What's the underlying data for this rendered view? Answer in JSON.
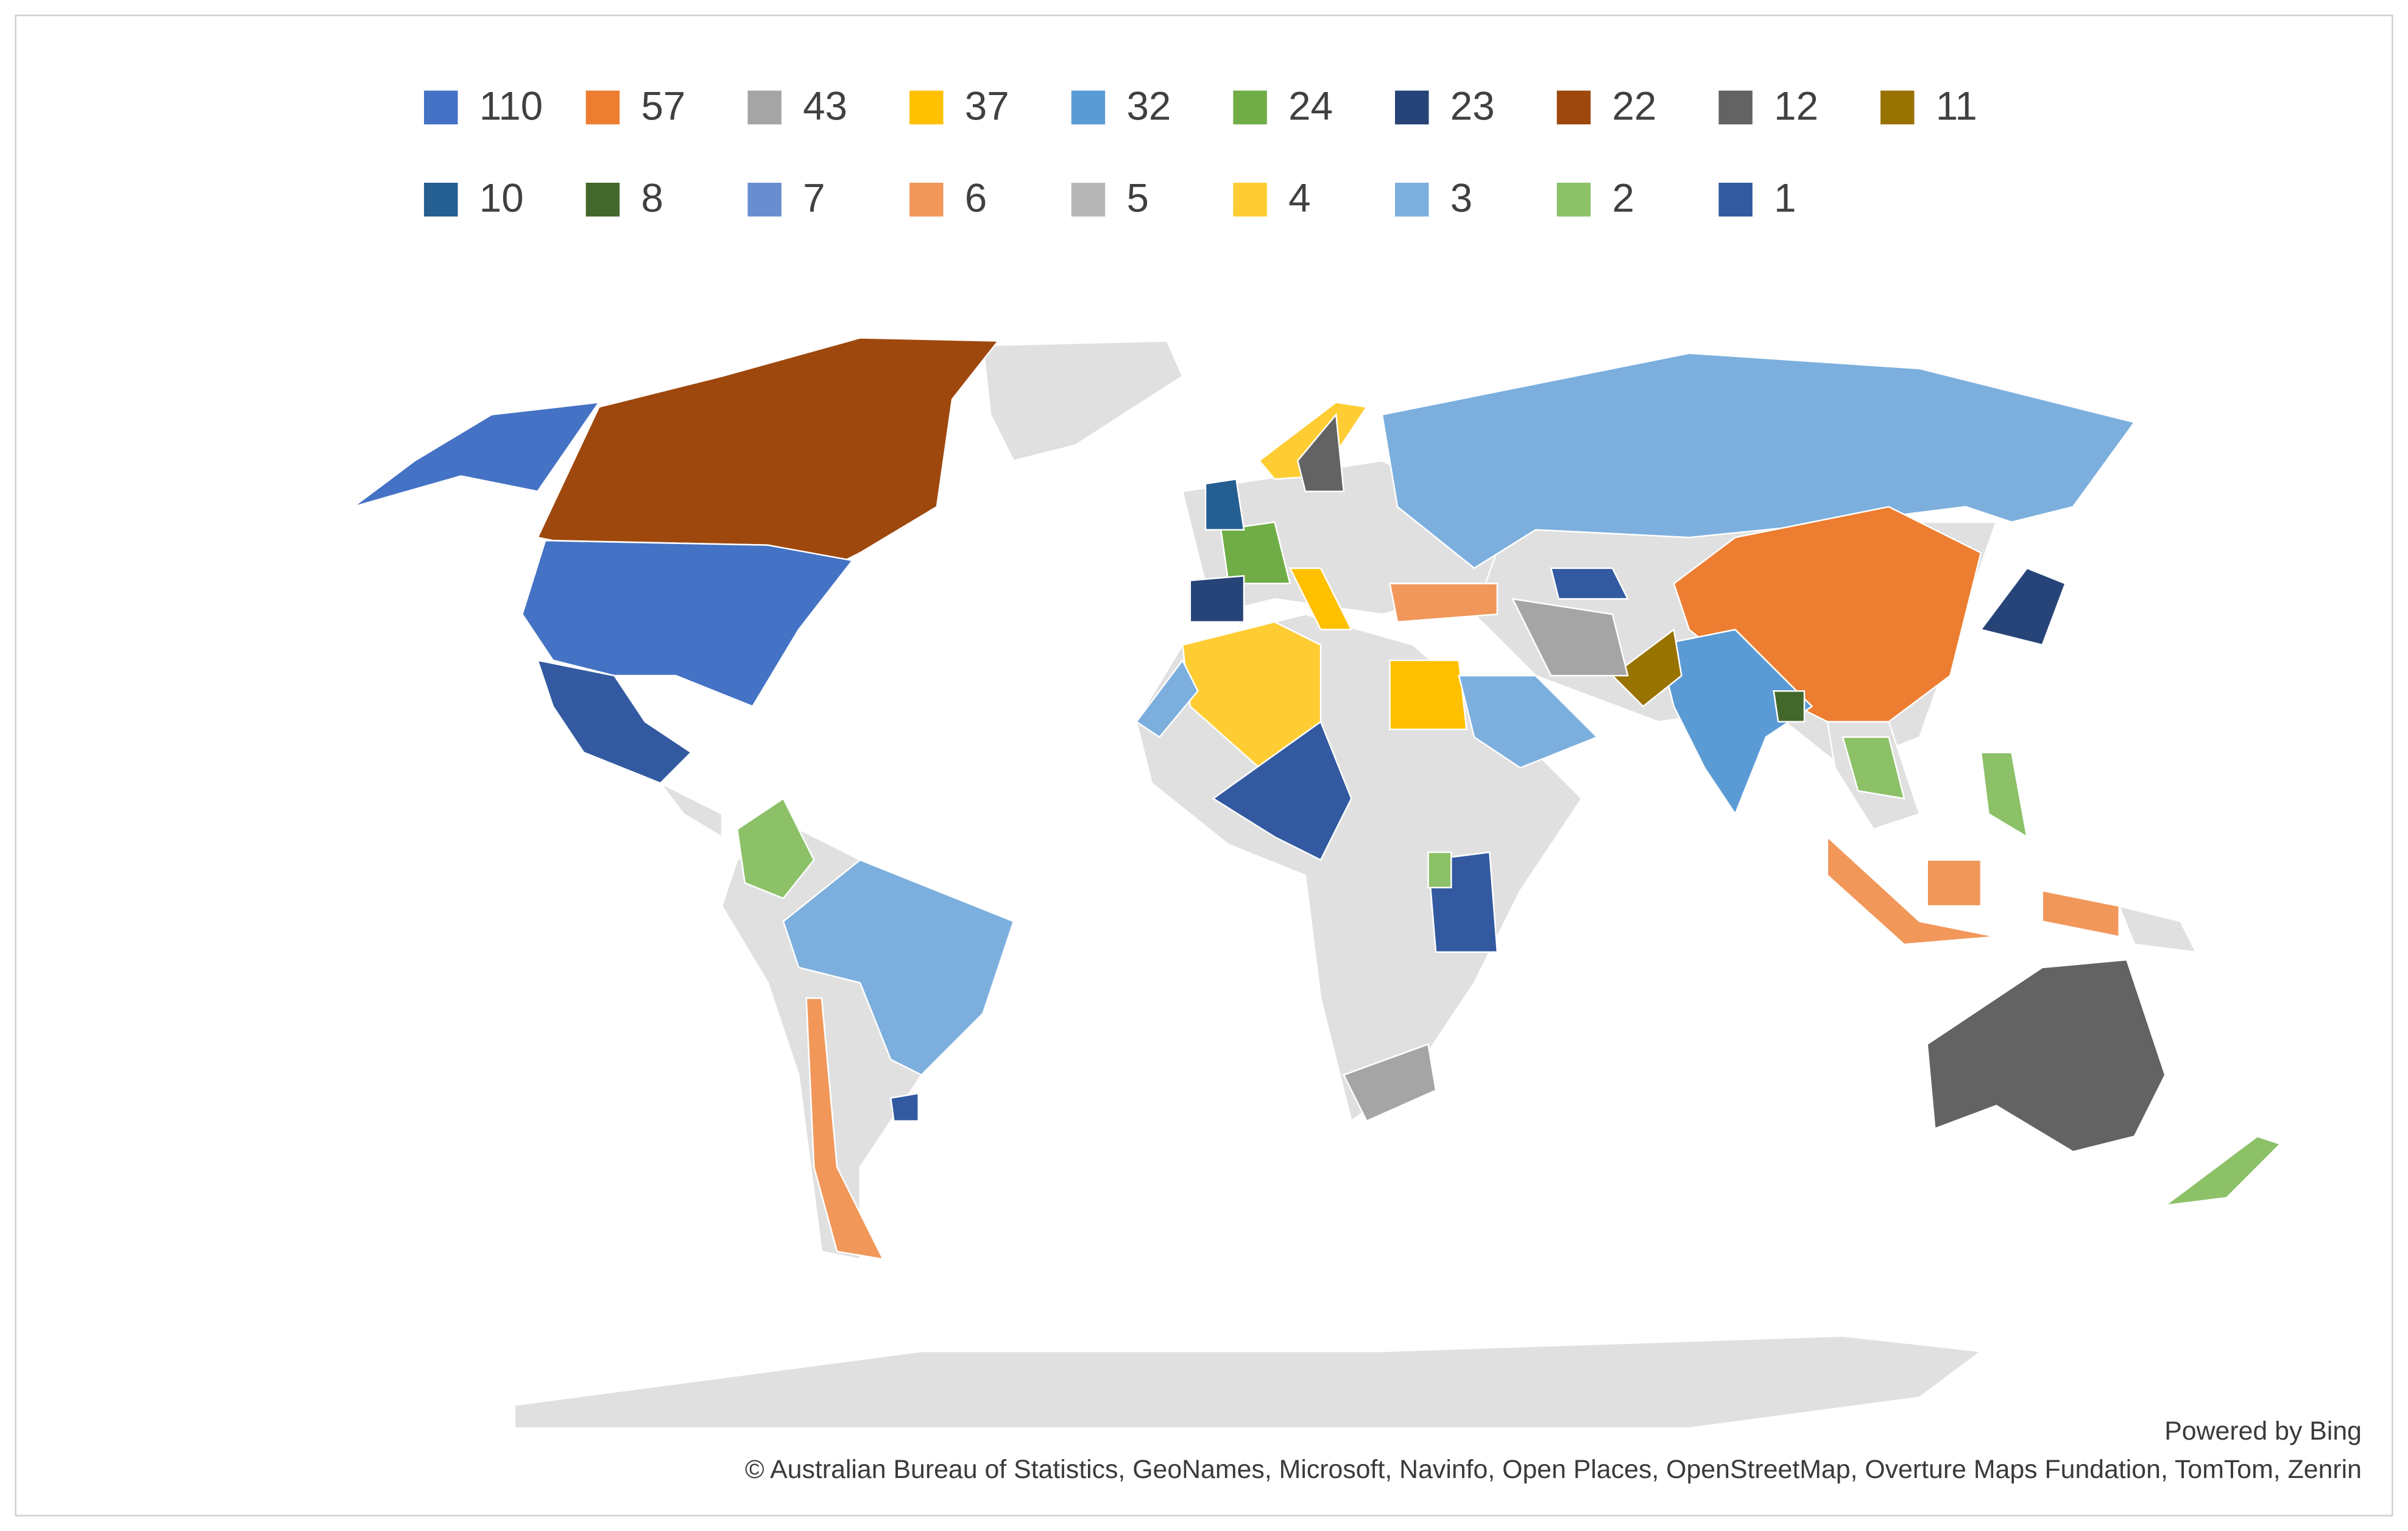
{
  "chart_data": {
    "type": "map",
    "values": [
      110,
      57,
      43,
      37,
      32,
      24,
      23,
      22,
      12,
      11,
      10,
      8,
      7,
      6,
      5,
      4,
      3,
      2,
      1
    ],
    "colors": [
      "#4472c4",
      "#ed7d31",
      "#a5a5a5",
      "#ffc000",
      "#5b9bd5",
      "#70ad47",
      "#264478",
      "#9e480e",
      "#636363",
      "#997300",
      "#255e91",
      "#43682b",
      "#698ed0",
      "#f1975a",
      "#b7b7b7",
      "#ffcd33",
      "#7cafdd",
      "#8cc168",
      "#335aa1"
    ],
    "attribution": [
      "Powered by Bing",
      "© Australian Bureau of Statistics, GeoNames, Microsoft, Navinfo, Open Places, OpenStreetMap, Overture Maps Fundation, TomTom, Zenrin"
    ]
  }
}
